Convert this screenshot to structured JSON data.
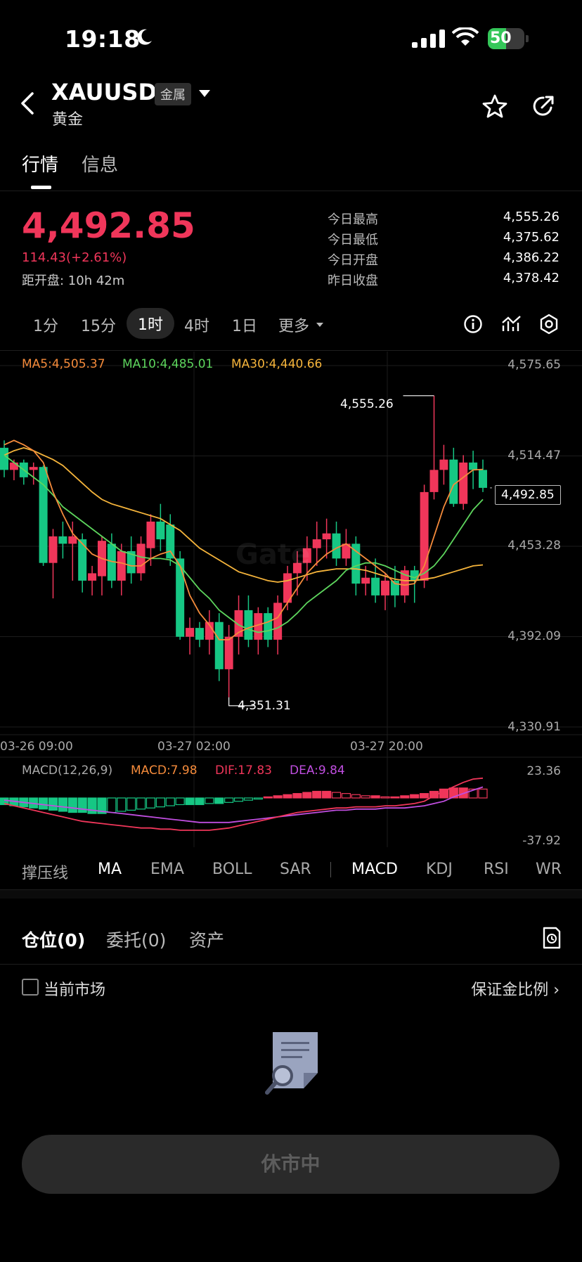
{
  "status_bar": {
    "time": "19:18",
    "battery": "50",
    "battery_level": 0.5
  },
  "header": {
    "symbol": "XAUUSD",
    "badge": "金属",
    "name": "黄金"
  },
  "tabs": [
    {
      "label": "行情"
    },
    {
      "label": "信息"
    }
  ],
  "quote": {
    "price": "4,492.85",
    "change": "114.43(+2.61%)",
    "countdown": "距开盘: 10h 42m",
    "stats": [
      {
        "label": "今日最高",
        "value": "4,555.26"
      },
      {
        "label": "今日最低",
        "value": "4,375.62"
      },
      {
        "label": "今日开盘",
        "value": "4,386.22"
      },
      {
        "label": "昨日收盘",
        "value": "4,378.42"
      }
    ]
  },
  "periods": [
    "1分",
    "15分",
    "1时",
    "4时",
    "1日",
    "更多"
  ],
  "chart": {
    "ma_legend": [
      {
        "label": "MA5:4,505.37",
        "color": "#f58b3b"
      },
      {
        "label": "MA10:4,485.01",
        "color": "#5dd55d"
      },
      {
        "label": "MA30:4,440.66",
        "color": "#f5b43b"
      }
    ],
    "y_ticks": [
      "4,575.65",
      "4,514.47",
      "4,453.28",
      "4,392.09",
      "4,330.91"
    ],
    "x_ticks": [
      "03-26 09:00",
      "03-27 02:00",
      "03-27 20:00"
    ],
    "high_marker": "4,555.26",
    "low_marker": "4,351.31",
    "current_tag": "4,492.85",
    "up_color": "#f0365a",
    "down_color": "#16c784",
    "watermark": "Gate"
  },
  "chart_data": {
    "type": "candlestick",
    "ylim": [
      4330.91,
      4575.65
    ],
    "candles": [
      [
        4520,
        4525,
        4500,
        4505
      ],
      [
        4505,
        4512,
        4498,
        4510
      ],
      [
        4510,
        4512,
        4495,
        4500
      ],
      [
        4505,
        4510,
        4495,
        4507
      ],
      [
        4507,
        4508,
        4440,
        4442
      ],
      [
        4442,
        4465,
        4418,
        4460
      ],
      [
        4460,
        4470,
        4445,
        4455
      ],
      [
        4455,
        4470,
        4430,
        4460
      ],
      [
        4458,
        4462,
        4422,
        4430
      ],
      [
        4430,
        4440,
        4420,
        4435
      ],
      [
        4433,
        4460,
        4420,
        4457
      ],
      [
        4455,
        4462,
        4425,
        4430
      ],
      [
        4430,
        4455,
        4420,
        4450
      ],
      [
        4450,
        4460,
        4428,
        4435
      ],
      [
        4435,
        4460,
        4430,
        4455
      ],
      [
        4452,
        4475,
        4440,
        4470
      ],
      [
        4470,
        4482,
        4450,
        4458
      ],
      [
        4468,
        4475,
        4440,
        4445
      ],
      [
        4445,
        4450,
        4390,
        4392
      ],
      [
        4392,
        4405,
        4380,
        4398
      ],
      [
        4398,
        4402,
        4385,
        4390
      ],
      [
        4390,
        4410,
        4380,
        4402
      ],
      [
        4402,
        4408,
        4362,
        4370
      ],
      [
        4370,
        4400,
        4351,
        4392
      ],
      [
        4392,
        4420,
        4380,
        4410
      ],
      [
        4410,
        4420,
        4385,
        4390
      ],
      [
        4390,
        4412,
        4380,
        4408
      ],
      [
        4408,
        4412,
        4385,
        4390
      ],
      [
        4390,
        4420,
        4380,
        4415
      ],
      [
        4415,
        4440,
        4410,
        4435
      ],
      [
        4435,
        4450,
        4420,
        4442
      ],
      [
        4442,
        4460,
        4430,
        4452
      ],
      [
        4452,
        4470,
        4440,
        4458
      ],
      [
        4458,
        4472,
        4445,
        4462
      ],
      [
        4462,
        4470,
        4440,
        4445
      ],
      [
        4445,
        4465,
        4440,
        4455
      ],
      [
        4455,
        4460,
        4420,
        4428
      ],
      [
        4428,
        4440,
        4420,
        4432
      ],
      [
        4432,
        4445,
        4415,
        4420
      ],
      [
        4420,
        4435,
        4410,
        4430
      ],
      [
        4430,
        4440,
        4412,
        4420
      ],
      [
        4420,
        4440,
        4415,
        4437
      ],
      [
        4437,
        4440,
        4415,
        4430
      ],
      [
        4430,
        4495,
        4425,
        4490
      ],
      [
        4490,
        4555.26,
        4485,
        4505
      ],
      [
        4505,
        4522,
        4495,
        4512
      ],
      [
        4512,
        4520,
        4480,
        4482
      ],
      [
        4482,
        4515,
        4478,
        4510
      ],
      [
        4510,
        4518,
        4492,
        4505
      ],
      [
        4505,
        4512,
        4490,
        4492.85
      ]
    ],
    "ma5": [
      4522,
      4525,
      4522,
      4518,
      4510,
      4490,
      4475,
      4462,
      4455,
      4448,
      4445,
      4443,
      4442,
      4440,
      4440,
      4445,
      4448,
      4450,
      4440,
      4420,
      4408,
      4400,
      4390,
      4390,
      4395,
      4398,
      4400,
      4402,
      4405,
      4415,
      4425,
      4435,
      4442,
      4448,
      4452,
      4455,
      4450,
      4445,
      4440,
      4435,
      4428,
      4427,
      4428,
      4440,
      4460,
      4480,
      4495,
      4500,
      4505,
      4505.37
    ],
    "ma10": [
      4515,
      4510,
      4505,
      4500,
      4495,
      4488,
      4480,
      4475,
      4470,
      4465,
      4460,
      4455,
      4450,
      4448,
      4446,
      4445,
      4445,
      4444,
      4440,
      4432,
      4424,
      4418,
      4410,
      4405,
      4400,
      4397,
      4395,
      4396,
      4398,
      4402,
      4408,
      4415,
      4420,
      4425,
      4430,
      4437,
      4440,
      4442,
      4442,
      4440,
      4437,
      4434,
      4432,
      4435,
      4440,
      4448,
      4458,
      4468,
      4478,
      4485.01
    ],
    "ma30": [
      4515,
      4518,
      4520,
      4518,
      4515,
      4512,
      4508,
      4502,
      4496,
      4490,
      4485,
      4482,
      4480,
      4478,
      4476,
      4474,
      4472,
      4468,
      4464,
      4458,
      4452,
      4448,
      4444,
      4440,
      4436,
      4434,
      4432,
      4430,
      4429,
      4430,
      4432,
      4434,
      4436,
      4437,
      4438,
      4438,
      4438,
      4437,
      4435,
      4433,
      4431,
      4430,
      4430,
      4431,
      4432,
      4434,
      4436,
      4438,
      4440,
      4440.66
    ]
  },
  "macd": {
    "legend": [
      {
        "label": "MACD(12,26,9)",
        "color": "#aaaaaa"
      },
      {
        "label": "MACD:7.98",
        "color": "#f58b3b"
      },
      {
        "label": "DIF:17.83",
        "color": "#f0365a"
      },
      {
        "label": "DEA:9.84",
        "color": "#c04ee0"
      }
    ],
    "y_ticks": [
      "23.36",
      "-37.92"
    ],
    "ylim": [
      -37.92,
      23.36
    ],
    "histogram": [
      -6,
      -7,
      -8,
      -9,
      -10,
      -11,
      -12,
      -13,
      -13,
      -14,
      -14,
      -13,
      -12,
      -11,
      -10,
      -9,
      -8,
      -7,
      -6,
      -6,
      -6,
      -5,
      -5,
      -4,
      -3,
      -2,
      -1,
      1,
      2,
      3,
      4,
      5,
      6,
      6,
      5,
      4,
      3,
      2,
      2,
      1,
      1,
      2,
      3,
      4,
      6,
      8,
      9,
      9,
      8,
      7.98
    ],
    "dif": [
      -5,
      -7,
      -9,
      -11,
      -13,
      -15,
      -17,
      -19,
      -21,
      -22,
      -23,
      -24,
      -25,
      -26,
      -27,
      -27,
      -28,
      -28,
      -29,
      -29,
      -29,
      -29,
      -28,
      -27,
      -25,
      -23,
      -21,
      -19,
      -17,
      -15,
      -13,
      -12,
      -11,
      -10,
      -9,
      -9,
      -8,
      -8,
      -8,
      -7,
      -7,
      -6,
      -5,
      -3,
      2,
      6,
      10,
      14,
      17,
      17.83
    ],
    "dea": [
      -2,
      -3,
      -4,
      -5,
      -6,
      -7,
      -8,
      -9,
      -10,
      -11,
      -12,
      -13,
      -14,
      -15,
      -16,
      -17,
      -18,
      -19,
      -20,
      -21,
      -22,
      -22,
      -22,
      -22,
      -21,
      -20,
      -19,
      -18,
      -17,
      -16,
      -15,
      -14,
      -13,
      -12,
      -11,
      -11,
      -10,
      -10,
      -10,
      -9,
      -9,
      -9,
      -8,
      -7,
      -5,
      -3,
      1,
      4,
      7,
      9.84
    ]
  },
  "indicators": {
    "main": [
      "撑压线",
      "MA",
      "EMA",
      "BOLL",
      "SAR"
    ],
    "sub": [
      "MACD",
      "KDJ",
      "RSI",
      "WR"
    ]
  },
  "positions": {
    "tabs": [
      "仓位(0)",
      "委托(0)",
      "资产"
    ],
    "filter_label": "当前市场",
    "margin_link": "保证金比例 ›"
  },
  "action": {
    "closed_label": "休市中"
  }
}
